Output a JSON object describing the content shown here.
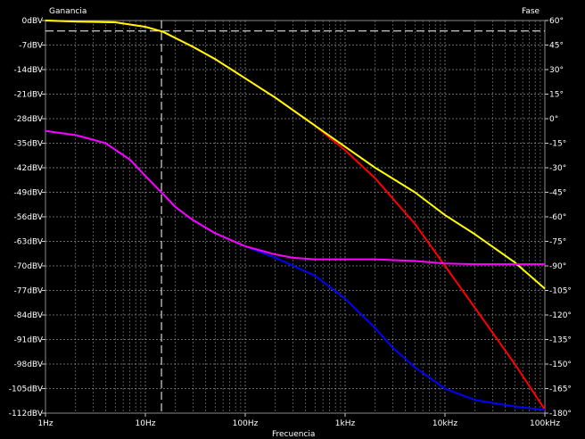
{
  "chart_data": {
    "type": "line",
    "left_axis_label": "Ganancia",
    "right_axis_label": "Fase",
    "xlabel": "Frecuencia",
    "x_scale": "log",
    "xlim": [
      1,
      100000
    ],
    "x_ticks": [
      1,
      10,
      100,
      1000,
      10000,
      100000
    ],
    "x_tick_labels": [
      "1Hz",
      "10Hz",
      "100Hz",
      "1kHz",
      "10kHz",
      "100kHz"
    ],
    "ylim_left": [
      -112,
      0
    ],
    "y_left_ticks": [
      0,
      -7,
      -14,
      -21,
      -28,
      -35,
      -42,
      -49,
      -56,
      -63,
      -70,
      -77,
      -84,
      -91,
      -98,
      -105,
      -112
    ],
    "y_left_tick_labels": [
      "0dBV",
      "-7dBV",
      "-14dBV",
      "-21dBV",
      "-28dBV",
      "-35dBV",
      "-42dBV",
      "-49dBV",
      "-56dBV",
      "-63dBV",
      "-70dBV",
      "-77dBV",
      "-84dBV",
      "-91dBV",
      "-98dBV",
      "-105dBV",
      "-112dBV"
    ],
    "ylim_right": [
      -180,
      60
    ],
    "y_right_ticks": [
      60,
      45,
      30,
      15,
      0,
      -15,
      -30,
      -45,
      -60,
      -75,
      -90,
      -105,
      -120,
      -135,
      -150,
      -165,
      -180
    ],
    "y_right_tick_labels": [
      "60°",
      "45°",
      "30°",
      "15°",
      "0°",
      "-15°",
      "-30°",
      "-45°",
      "-60°",
      "-75°",
      "-90°",
      "-105°",
      "-120°",
      "-135°",
      "-150°",
      "-165°",
      "-180°"
    ],
    "grid": true,
    "cursor": {
      "x": 14.5,
      "y_left": -3,
      "color": "#ffffff"
    },
    "series": [
      {
        "axis": "left",
        "color": "#ffff00",
        "x": [
          1,
          2,
          5,
          10,
          15,
          20,
          30,
          50,
          100,
          200,
          500,
          1000,
          2000,
          5000,
          10000,
          20000,
          50000,
          100000
        ],
        "y": [
          0,
          -0.3,
          -0.5,
          -1.8,
          -3.2,
          -5,
          -7.5,
          -11,
          -16.5,
          -22,
          -30,
          -36,
          -42,
          -49,
          -55.5,
          -61,
          -69,
          -76.5
        ]
      },
      {
        "axis": "left",
        "color": "#ff0000",
        "x": [
          1,
          2,
          5,
          10,
          15,
          20,
          30,
          50,
          100,
          200,
          500,
          1000,
          2000,
          5000,
          10000,
          20000,
          50000,
          100000
        ],
        "y": [
          0,
          -0.3,
          -0.5,
          -1.8,
          -3.2,
          -5,
          -7.5,
          -11,
          -16.5,
          -22,
          -30,
          -37,
          -45,
          -58,
          -70,
          -82,
          -98,
          -111
        ]
      },
      {
        "axis": "right",
        "color": "#ff00ff",
        "x": [
          1,
          2,
          4,
          7,
          10,
          15,
          20,
          30,
          50,
          100,
          200,
          300,
          500,
          1000,
          2000,
          5000,
          10000,
          20000,
          50000,
          100000
        ],
        "y": [
          -7.5,
          -10,
          -15,
          -25,
          -35,
          -46,
          -54,
          -62,
          -70,
          -78,
          -83,
          -85,
          -86,
          -86,
          -86,
          -87,
          -88.5,
          -89,
          -89,
          -89
        ]
      },
      {
        "axis": "right",
        "color": "#0000ff",
        "x": [
          1,
          2,
          4,
          7,
          10,
          15,
          20,
          30,
          50,
          100,
          200,
          500,
          1000,
          2000,
          3000,
          5000,
          10000,
          20000,
          50000,
          100000
        ],
        "y": [
          -7.5,
          -10,
          -15,
          -25,
          -35,
          -46,
          -54,
          -62,
          -70,
          -78,
          -85,
          -96,
          -110,
          -128,
          -140,
          -152,
          -165,
          -172,
          -176,
          -178
        ]
      }
    ]
  }
}
